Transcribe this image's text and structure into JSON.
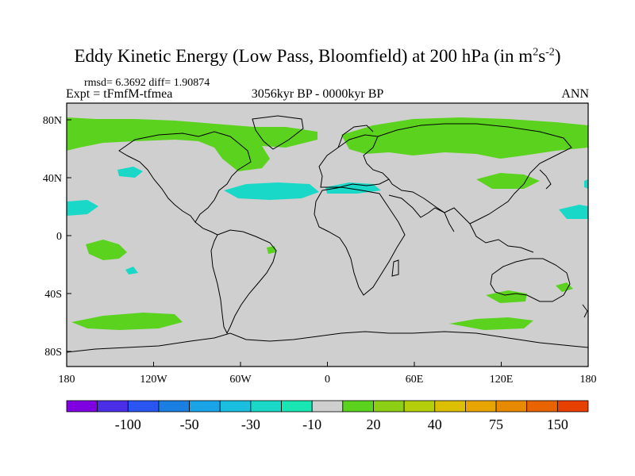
{
  "title": {
    "main": "Eddy Kinetic Energy (Low Pass, Bloomfield) at 200 hPa (in m",
    "sup1": "2",
    "mid": "s",
    "sup2": "-2",
    "close": ")"
  },
  "stats": "rmsd= 6.3692 diff= 1.90874",
  "expt": "Expt = tFmfM-tfmea",
  "period": "3056kyr BP - 0000kyr BP",
  "season": "ANN",
  "map": {
    "lon_ticks": [
      "180",
      "120W",
      "60W",
      "0",
      "60E",
      "120E",
      "180"
    ],
    "lat_ticks": [
      "80N",
      "40N",
      "0",
      "40S",
      "80S"
    ],
    "background_color": "#cfcfcf"
  },
  "colorbar": {
    "colors": [
      "#7f00e0",
      "#4a2ee8",
      "#2a55f0",
      "#1a7fe0",
      "#1aa4e8",
      "#1abfe0",
      "#1ad8c8",
      "#1ae6b4",
      "#cfcfcf",
      "#5ad21e",
      "#8ccf14",
      "#b4cf0a",
      "#dcbf00",
      "#e8a500",
      "#e88a00",
      "#e86400",
      "#e84000"
    ],
    "labels": [
      "-100",
      "-50",
      "-30",
      "-10",
      "20",
      "40",
      "75",
      "150"
    ]
  }
}
